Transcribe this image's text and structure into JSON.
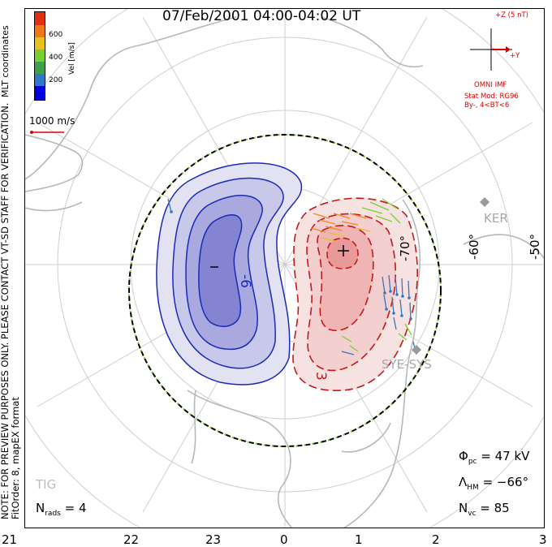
{
  "title": "07/Feb/2001 04:00-04:02 UT",
  "side_note": {
    "line1": "NOTE: FOR PREVIEW PURPOSES ONLY. PLEASE CONTACT VT-SD STAFF FOR VERIFICATION.",
    "line2": "FitOrder: 8, mapEX format"
  },
  "coordinate_label": "MLT coordinates",
  "colorbar": {
    "label": "Vel [m/s]",
    "ticks": [
      "600",
      "400",
      "200"
    ],
    "colors": [
      "#0000e0",
      "#2e78c8",
      "#3fa04c",
      "#78d030",
      "#e8c020",
      "#f07818",
      "#e03010"
    ]
  },
  "vector_scale": "1000 m/s",
  "imf": {
    "scale": "+Z (5 nT)",
    "axis_y": "+Y",
    "source": "OMNI IMF",
    "model": "Stat Mod: RG96",
    "condition": "By-, 4<BT<6",
    "color": "#d00000"
  },
  "latitude_labels": [
    "-60°",
    "-50°",
    "-70°"
  ],
  "contour_labels": [
    "-6",
    "3"
  ],
  "stations": [
    "KER",
    "SYE-SYS",
    "TIG"
  ],
  "mlt_ticks": [
    "21",
    "22",
    "23",
    "0",
    "1",
    "2",
    "3"
  ],
  "stats": {
    "phi_pc": "Φ",
    "phi_pc_sub": "pc",
    "phi_pc_value": "= 47 kV",
    "lambda_hm": "Λ",
    "lambda_hm_sub": "HM",
    "lambda_hm_value": "= −66°",
    "n_vc": "N",
    "n_vc_sub": "vc",
    "n_vc_value": "= 85"
  },
  "n_rads": {
    "label": "N",
    "sub": "rads",
    "value": "= 4"
  }
}
